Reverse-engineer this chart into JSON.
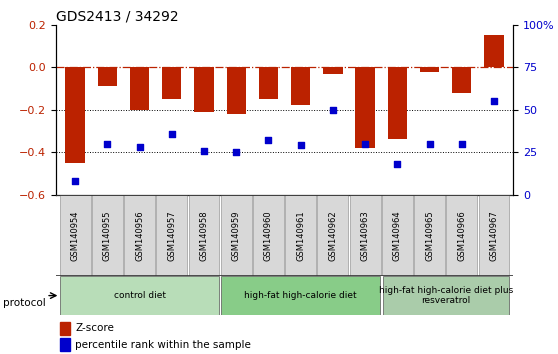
{
  "title": "GDS2413 / 34292",
  "samples": [
    "GSM140954",
    "GSM140955",
    "GSM140956",
    "GSM140957",
    "GSM140958",
    "GSM140959",
    "GSM140960",
    "GSM140961",
    "GSM140962",
    "GSM140963",
    "GSM140964",
    "GSM140965",
    "GSM140966",
    "GSM140967"
  ],
  "z_scores": [
    -0.45,
    -0.09,
    -0.2,
    -0.15,
    -0.21,
    -0.22,
    -0.15,
    -0.18,
    -0.03,
    -0.38,
    -0.34,
    -0.02,
    -0.12,
    0.15
  ],
  "percentile_ranks": [
    8,
    30,
    28,
    36,
    26,
    25,
    32,
    29,
    50,
    30,
    18,
    30,
    30,
    55
  ],
  "bar_color": "#bb2200",
  "dot_color": "#0000cc",
  "ylim_left": [
    -0.6,
    0.2
  ],
  "ylim_right": [
    0,
    100
  ],
  "yticks_left": [
    -0.6,
    -0.4,
    -0.2,
    0.0,
    0.2
  ],
  "yticks_right": [
    0,
    25,
    50,
    75,
    100
  ],
  "ytick_labels_right": [
    "0",
    "25",
    "50",
    "75",
    "100%"
  ],
  "hline_y": 0.0,
  "hline_color": "#bb2200",
  "dotted_lines": [
    -0.2,
    -0.4
  ],
  "groups": [
    {
      "label": "control diet",
      "start": 0,
      "end": 5,
      "color": "#b8ddb8"
    },
    {
      "label": "high-fat high-calorie diet",
      "start": 5,
      "end": 10,
      "color": "#b8ddb8"
    },
    {
      "label": "high-fat high-calorie diet plus\nresveratrol",
      "start": 10,
      "end": 14,
      "color": "#b8ddb8"
    }
  ],
  "protocol_label": "protocol",
  "legend_zscore": "Z-score",
  "legend_pctrank": "percentile rank within the sample",
  "background_color": "#ffffff",
  "plot_bg_color": "#ffffff",
  "tick_label_color_left": "#bb2200",
  "tick_label_color_right": "#0000cc",
  "tick_fontsize": 8,
  "title_fontsize": 10
}
